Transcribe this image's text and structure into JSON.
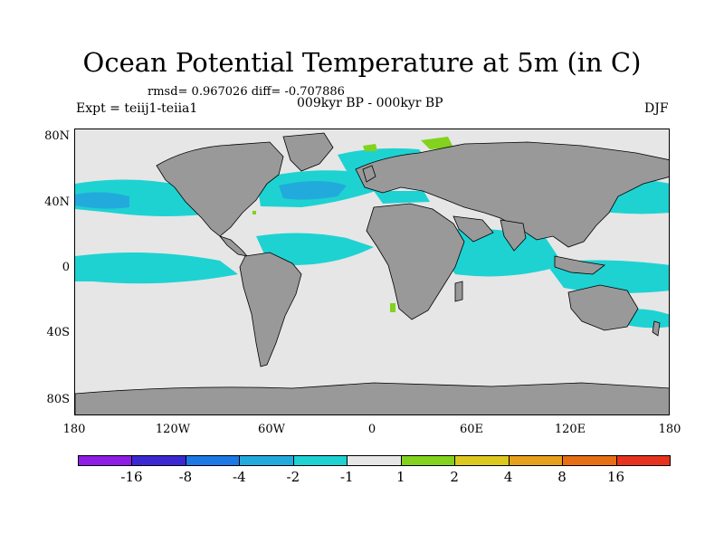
{
  "title": "Ocean Potential Temperature at 5m (in C)",
  "stats": "rmsd= 0.967026 diff= -0.707886",
  "experiment": "Expt = teiij1-teiia1",
  "period": "009kyr BP - 000kyr BP",
  "season": "DJF",
  "chart_data": {
    "type": "heatmap",
    "title": "Ocean Potential Temperature at 5m (in C)",
    "xlabel": "",
    "ylabel": "",
    "x_ticks": [
      "180",
      "120W",
      "60W",
      "0",
      "60E",
      "120E",
      "180"
    ],
    "y_ticks": [
      "80N",
      "40N",
      "0",
      "40S",
      "80S"
    ],
    "colorbar": {
      "labels": [
        "-16",
        "-8",
        "-4",
        "-2",
        "-1",
        "1",
        "2",
        "4",
        "8",
        "16"
      ],
      "colors": [
        "#8c1ee6",
        "#3c28d2",
        "#1e78e6",
        "#23aadc",
        "#1ed2d2",
        "#e6e6e6",
        "#82d21e",
        "#dcc81e",
        "#e6a01e",
        "#e66e14",
        "#e6321e"
      ]
    },
    "land_color": "#999999",
    "ocean_neutral_color": "#e6e6e6"
  }
}
